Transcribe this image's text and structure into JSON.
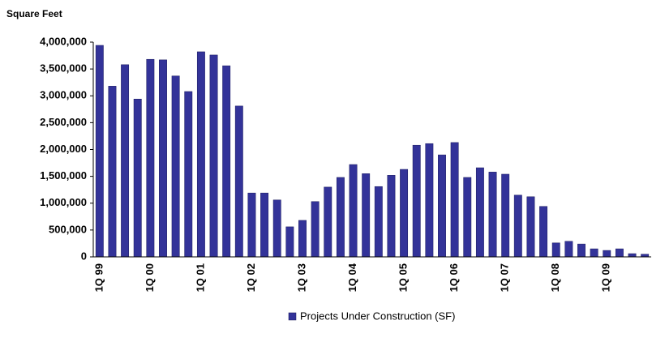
{
  "chart_data": {
    "type": "bar",
    "y_axis_label": "Square Feet",
    "categories": [
      "1Q 99",
      null,
      null,
      null,
      "1Q 00",
      null,
      null,
      null,
      "1Q 01",
      null,
      null,
      null,
      "1Q 02",
      null,
      null,
      null,
      "1Q 03",
      null,
      null,
      null,
      "1Q 04",
      null,
      null,
      null,
      "1Q 05",
      null,
      null,
      null,
      "1Q 06",
      null,
      null,
      null,
      "1Q 07",
      null,
      null,
      null,
      "1Q 08",
      null,
      null,
      null,
      "1Q 09",
      null,
      null,
      null
    ],
    "series": [
      {
        "name": "Projects Under Construction (SF)",
        "color": "#333399",
        "values": [
          3940000,
          3180000,
          3580000,
          2940000,
          3680000,
          3670000,
          3370000,
          3080000,
          3820000,
          3760000,
          3560000,
          2810000,
          1190000,
          1190000,
          1060000,
          560000,
          680000,
          1030000,
          1300000,
          1480000,
          1720000,
          1550000,
          1310000,
          1520000,
          1630000,
          2080000,
          2110000,
          1900000,
          2130000,
          1480000,
          1660000,
          1580000,
          1540000,
          1150000,
          1120000,
          940000,
          260000,
          290000,
          240000,
          150000,
          120000,
          150000,
          60000,
          50000
        ]
      }
    ],
    "ylim": [
      0,
      4000000
    ],
    "yticks": [
      0,
      {
        "value": 500000,
        "label": "500,000"
      },
      {
        "value": 1000000,
        "label": "1,000,000"
      },
      {
        "value": 1500000,
        "label": "1,500,000"
      },
      {
        "value": 2000000,
        "label": "2,000,000"
      },
      {
        "value": 2500000,
        "label": "2,500,000"
      },
      {
        "value": 3000000,
        "label": "3,000,000"
      },
      {
        "value": 3500000,
        "label": "3,500,000"
      },
      {
        "value": 4000000,
        "label": "4,000,000"
      }
    ],
    "grid": false,
    "legend": "bottom"
  }
}
